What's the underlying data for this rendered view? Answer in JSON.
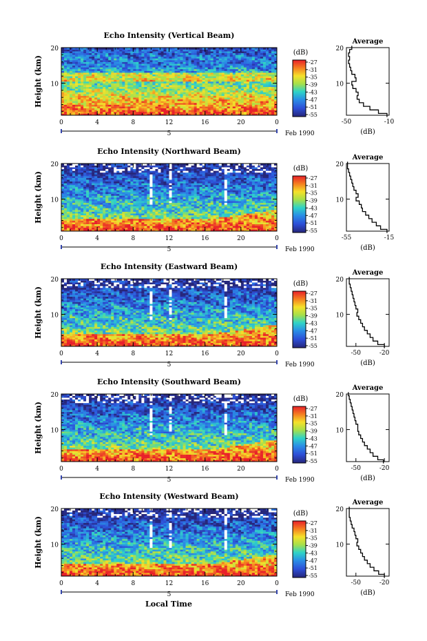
{
  "figure": {
    "xlabel": "Local Time",
    "date_label": "Feb 1990",
    "date_tick": "5",
    "colorbar_unit": "(dB)",
    "profile_title": "Average",
    "profile_xlabel": "(dB)"
  },
  "chart_data": [
    {
      "type": "heatmap",
      "title": "Echo Intensity (Vertical Beam)",
      "ylabel": "Height (km)",
      "xlim": [
        0,
        24
      ],
      "ylim": [
        1,
        20
      ],
      "x_ticks": [
        "0",
        "4",
        "8",
        "12",
        "16",
        "20",
        "0"
      ],
      "y_ticks": [
        "20",
        "10"
      ],
      "colorbar": {
        "unit": "(dB)",
        "ticks": [
          "-27",
          "-31",
          "-35",
          "-39",
          "-43",
          "-47",
          "-51",
          "-55"
        ]
      },
      "profile": {
        "title": "Average",
        "xlabel": "(dB)",
        "xlim": [
          -50,
          -10
        ],
        "ylim": [
          1,
          20
        ],
        "x_ticks": [
          "-50",
          "-10"
        ],
        "y_ticks": [
          "20",
          "10"
        ],
        "height_km": [
          1,
          2,
          3,
          4,
          5,
          6,
          7,
          8,
          9,
          10,
          11,
          12,
          13,
          14,
          15,
          16,
          17,
          18,
          19,
          20
        ],
        "db": [
          -12,
          -20,
          -28,
          -34,
          -38,
          -40,
          -39,
          -41,
          -44,
          -45,
          -41,
          -42,
          -45,
          -46,
          -47,
          -48,
          -47,
          -48,
          -47,
          -45
        ]
      }
    },
    {
      "type": "heatmap",
      "title": "Echo Intensity (Northward Beam)",
      "ylabel": "Height (km)",
      "xlim": [
        0,
        24
      ],
      "ylim": [
        1,
        20
      ],
      "x_ticks": [
        "0",
        "4",
        "8",
        "12",
        "16",
        "20",
        "0"
      ],
      "y_ticks": [
        "20",
        "10"
      ],
      "colorbar": {
        "unit": "(dB)",
        "ticks": [
          "-27",
          "-31",
          "-35",
          "-39",
          "-43",
          "-47",
          "-51",
          "-55"
        ]
      },
      "profile": {
        "title": "Average",
        "xlabel": "(dB)",
        "xlim": [
          -55,
          -15
        ],
        "ylim": [
          1,
          20
        ],
        "x_ticks": [
          "-55",
          "-15"
        ],
        "y_ticks": [
          "20",
          "10"
        ],
        "height_km": [
          1,
          2,
          3,
          4,
          5,
          6,
          7,
          8,
          9,
          10,
          11,
          12,
          13,
          14,
          15,
          16,
          17,
          18,
          19,
          20
        ],
        "db": [
          -17,
          -23,
          -27,
          -31,
          -34,
          -37,
          -40,
          -41,
          -43,
          -46,
          -44,
          -46,
          -48,
          -49,
          -50,
          -51,
          -52,
          -53,
          -54,
          -54
        ]
      }
    },
    {
      "type": "heatmap",
      "title": "Echo Intensity (Eastward Beam)",
      "ylabel": "Height (km)",
      "xlim": [
        0,
        24
      ],
      "ylim": [
        1,
        20
      ],
      "x_ticks": [
        "0",
        "4",
        "8",
        "12",
        "16",
        "20",
        "0"
      ],
      "y_ticks": [
        "20",
        "10"
      ],
      "colorbar": {
        "unit": "(dB)",
        "ticks": [
          "-27",
          "-31",
          "-35",
          "-39",
          "-43",
          "-47",
          "-51",
          "-55"
        ]
      },
      "profile": {
        "title": "Average",
        "xlabel": "(dB)",
        "xlim": [
          -60,
          -15
        ],
        "ylim": [
          1,
          20
        ],
        "x_ticks": [
          "-50",
          "-20"
        ],
        "y_ticks": [
          "20",
          "10"
        ],
        "height_km": [
          1,
          2,
          3,
          4,
          5,
          6,
          7,
          8,
          9,
          10,
          11,
          12,
          13,
          14,
          15,
          16,
          17,
          18,
          19,
          20
        ],
        "db": [
          -20,
          -27,
          -32,
          -35,
          -38,
          -41,
          -43,
          -45,
          -47,
          -49,
          -48,
          -50,
          -51,
          -52,
          -53,
          -54,
          -55,
          -56,
          -57,
          -57
        ]
      }
    },
    {
      "type": "heatmap",
      "title": "Echo Intensity (Southward Beam)",
      "ylabel": "Height (km)",
      "xlim": [
        0,
        24
      ],
      "ylim": [
        1,
        20
      ],
      "x_ticks": [
        "0",
        "4",
        "8",
        "12",
        "16",
        "20",
        "0"
      ],
      "y_ticks": [
        "20",
        "10"
      ],
      "colorbar": {
        "unit": "(dB)",
        "ticks": [
          "-27",
          "-31",
          "-35",
          "-39",
          "-43",
          "-47",
          "-51",
          "-55"
        ]
      },
      "profile": {
        "title": "Average",
        "xlabel": "(dB)",
        "xlim": [
          -60,
          -15
        ],
        "ylim": [
          1,
          20
        ],
        "x_ticks": [
          "-50",
          "-20"
        ],
        "y_ticks": [
          "20",
          "10"
        ],
        "height_km": [
          1,
          2,
          3,
          4,
          5,
          6,
          7,
          8,
          9,
          10,
          11,
          12,
          13,
          14,
          15,
          16,
          17,
          18,
          19,
          20
        ],
        "db": [
          -21,
          -27,
          -32,
          -35,
          -38,
          -41,
          -43,
          -45,
          -47,
          -48,
          -48,
          -50,
          -51,
          -52,
          -53,
          -54,
          -55,
          -56,
          -57,
          -58
        ]
      }
    },
    {
      "type": "heatmap",
      "title": "Echo Intensity (Westward Beam)",
      "ylabel": "Height (km)",
      "xlim": [
        0,
        24
      ],
      "ylim": [
        1,
        20
      ],
      "x_ticks": [
        "0",
        "4",
        "8",
        "12",
        "16",
        "20",
        "0"
      ],
      "y_ticks": [
        "20",
        "10"
      ],
      "colorbar": {
        "unit": "(dB)",
        "ticks": [
          "-27",
          "-31",
          "-35",
          "-39",
          "-43",
          "-47",
          "-51",
          "-55"
        ]
      },
      "profile": {
        "title": "Average",
        "xlabel": "(dB)",
        "xlim": [
          -60,
          -15
        ],
        "ylim": [
          1,
          20
        ],
        "x_ticks": [
          "-50",
          "-20"
        ],
        "y_ticks": [
          "20",
          "10"
        ],
        "height_km": [
          1,
          2,
          3,
          4,
          5,
          6,
          7,
          8,
          9,
          10,
          11,
          12,
          13,
          14,
          15,
          16,
          17,
          18,
          19,
          20
        ],
        "db": [
          -20,
          -26,
          -31,
          -35,
          -38,
          -41,
          -43,
          -45,
          -47,
          -49,
          -48,
          -50,
          -51,
          -52,
          -54,
          -55,
          -56,
          -57,
          -57,
          -57
        ]
      }
    }
  ]
}
